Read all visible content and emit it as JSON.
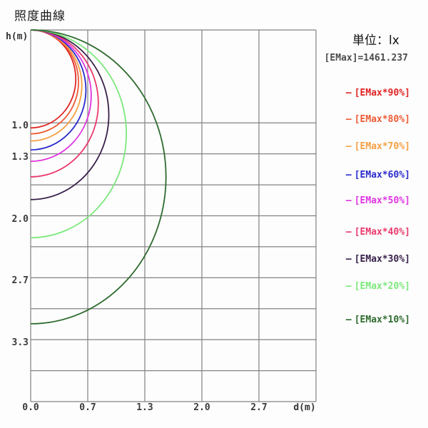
{
  "title": "照度曲線",
  "legend": {
    "unit_label": "単位：lx",
    "emax_label": "[EMax]=1461.237",
    "swatch": "—",
    "entries": [
      {
        "label": "[EMax*90%]",
        "color": "#e02424"
      },
      {
        "label": "[EMax*80%]",
        "color": "#ee5b35"
      },
      {
        "label": "[EMax*70%]",
        "color": "#f5a043"
      },
      {
        "label": "[EMax*60%]",
        "color": "#2b2bcd"
      },
      {
        "label": "[EMax*50%]",
        "color": "#e135e1"
      },
      {
        "label": "[EMax*40%]",
        "color": "#ea3a6e"
      },
      {
        "label": "[EMax*30%]",
        "color": "#38204a"
      },
      {
        "label": "[EMax*20%]",
        "color": "#7ce87c"
      },
      {
        "label": "[EMax*10%]",
        "color": "#2f6b2f"
      }
    ]
  },
  "chart_data": {
    "type": "line",
    "subtype": "iso-illuminance semicircle curves from point source at origin",
    "title": "照度曲線",
    "unit": "lx",
    "emax_lx": 1461.237,
    "x_axis": {
      "label": "d(m)",
      "max_m": 3.3333,
      "grid_lines_m": [
        0,
        0.6667,
        1.3333,
        2.0,
        2.6667,
        3.3333
      ],
      "ticks": [
        {
          "d": 0,
          "label": "0.0"
        },
        {
          "d": 0.6667,
          "label": "0.7"
        },
        {
          "d": 1.3333,
          "label": "1.3"
        },
        {
          "d": 2.0,
          "label": "2.0"
        },
        {
          "d": 2.6667,
          "label": "2.7"
        }
      ]
    },
    "y_axis": {
      "label": "h(m)",
      "max_m": 4.0,
      "grid_lines_m": [
        0,
        1.0,
        1.3333,
        1.6667,
        2.0,
        2.3333,
        2.6667,
        3.0,
        3.3333,
        3.6667,
        4.0
      ],
      "ticks": [
        {
          "h": 1.0,
          "label": "1.0"
        },
        {
          "h": 1.3333,
          "label": "1.3"
        },
        {
          "h": 2.0,
          "label": "2.0"
        },
        {
          "h": 2.6667,
          "label": "2.7"
        },
        {
          "h": 3.3333,
          "label": "3.3"
        }
      ]
    },
    "series": [
      {
        "name": "[EMax*90%]",
        "fraction": 0.9,
        "axis_depth_m": 1.0541,
        "max_radius_m": 0.527,
        "color": "#e02424"
      },
      {
        "name": "[EMax*80%]",
        "fraction": 0.8,
        "axis_depth_m": 1.118,
        "max_radius_m": 0.559,
        "color": "#ee5b35"
      },
      {
        "name": "[EMax*70%]",
        "fraction": 0.7,
        "axis_depth_m": 1.1952,
        "max_radius_m": 0.598,
        "color": "#f5a043"
      },
      {
        "name": "[EMax*60%]",
        "fraction": 0.6,
        "axis_depth_m": 1.291,
        "max_radius_m": 0.645,
        "color": "#2b2bcd"
      },
      {
        "name": "[EMax*50%]",
        "fraction": 0.5,
        "axis_depth_m": 1.4142,
        "max_radius_m": 0.707,
        "color": "#e135e1"
      },
      {
        "name": "[EMax*40%]",
        "fraction": 0.4,
        "axis_depth_m": 1.5811,
        "max_radius_m": 0.791,
        "color": "#ea3a6e"
      },
      {
        "name": "[EMax*30%]",
        "fraction": 0.3,
        "axis_depth_m": 1.8257,
        "max_radius_m": 0.913,
        "color": "#38204a"
      },
      {
        "name": "[EMax*20%]",
        "fraction": 0.2,
        "axis_depth_m": 2.2361,
        "max_radius_m": 1.118,
        "color": "#7ce87c"
      },
      {
        "name": "[EMax*10%]",
        "fraction": 0.1,
        "axis_depth_m": 3.1623,
        "max_radius_m": 1.581,
        "color": "#2f6b2f"
      }
    ]
  }
}
